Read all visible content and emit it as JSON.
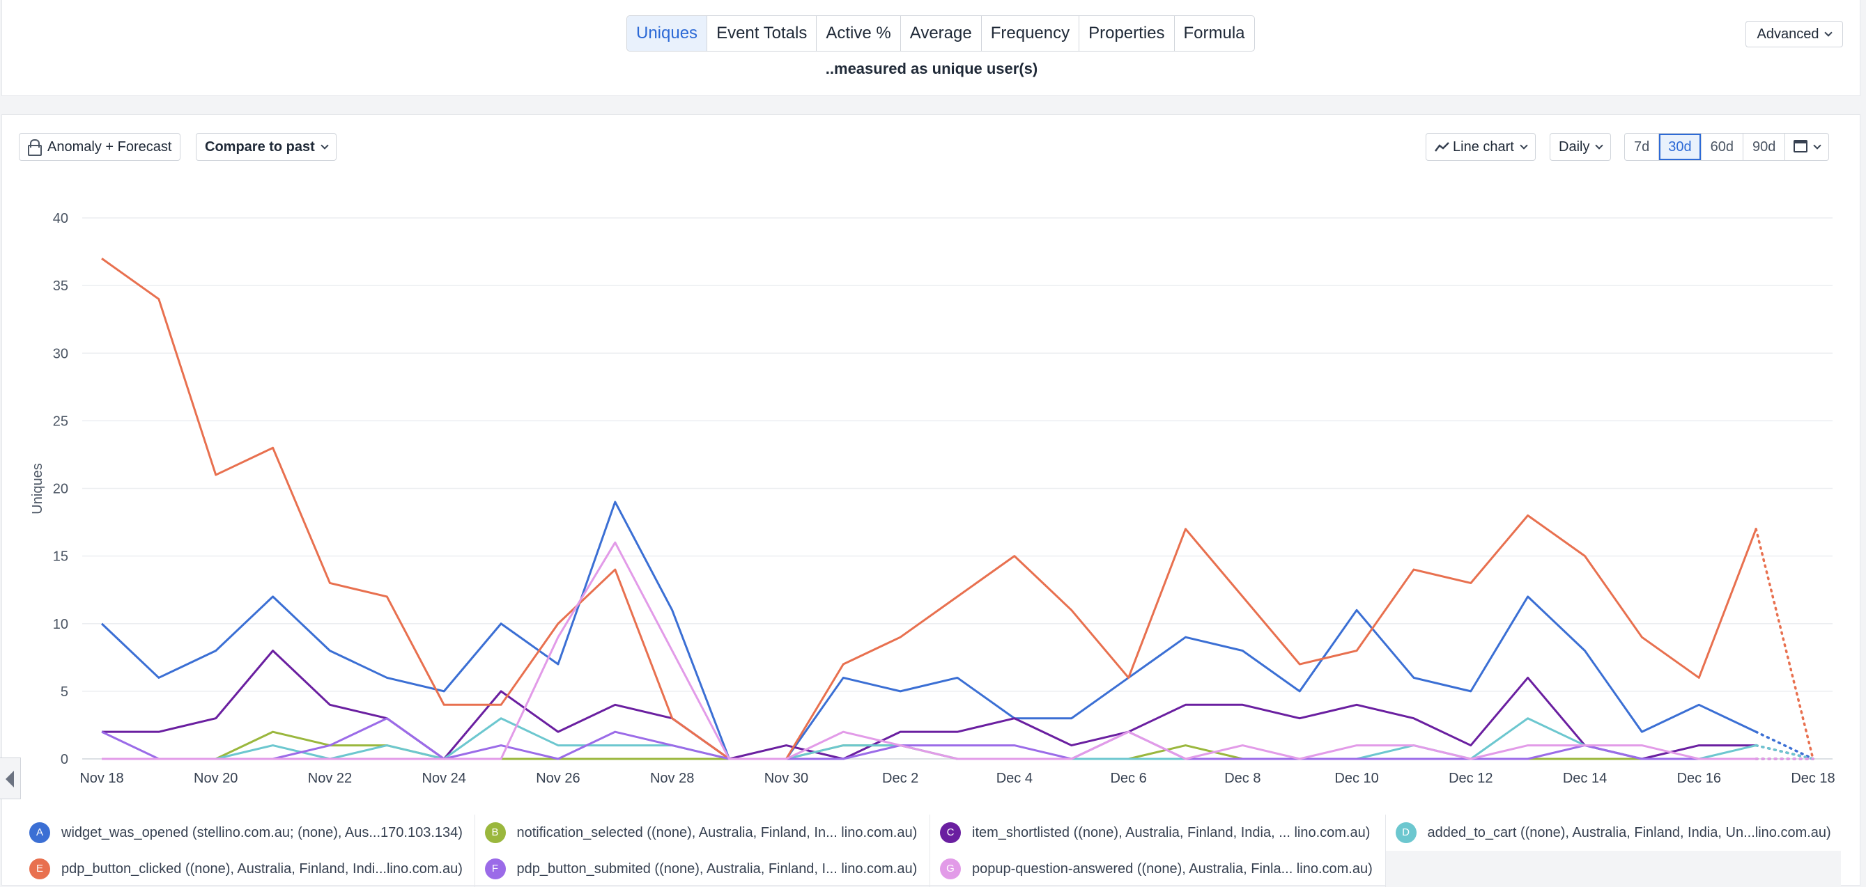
{
  "metric_tabs": [
    "Uniques",
    "Event Totals",
    "Active %",
    "Average",
    "Frequency",
    "Properties",
    "Formula"
  ],
  "active_metric": "Uniques",
  "measured_text": "..measured as unique user(s)",
  "advanced_label": "Advanced",
  "toolbar": {
    "anomaly_label": "Anomaly + Forecast",
    "compare_label": "Compare to past",
    "chart_type_label": "Line chart",
    "interval_label": "Daily",
    "ranges": [
      "7d",
      "30d",
      "60d",
      "90d"
    ],
    "active_range": "30d"
  },
  "legend": [
    {
      "letter": "A",
      "label": "widget_was_opened (stellino.com.au; (none), Aus...170.103.134)",
      "color": "#3b6fd4"
    },
    {
      "letter": "B",
      "label": "notification_selected ((none), Australia, Finland, In... lino.com.au)",
      "color": "#9ab73d"
    },
    {
      "letter": "C",
      "label": "item_shortlisted ((none), Australia, Finland, India, ... lino.com.au)",
      "color": "#6a1fa0"
    },
    {
      "letter": "D",
      "label": "added_to_cart ((none), Australia, Finland, India, Un...lino.com.au)",
      "color": "#6cc7cf"
    },
    {
      "letter": "E",
      "label": "pdp_button_clicked ((none), Australia, Finland, Indi...lino.com.au)",
      "color": "#e8704f"
    },
    {
      "letter": "F",
      "label": "pdp_button_submited ((none), Australia, Finland, I... lino.com.au)",
      "color": "#9b6be8"
    },
    {
      "letter": "G",
      "label": "popup-question-answered ((none), Australia, Finla... lino.com.au)",
      "color": "#e29be8"
    }
  ],
  "chart_data": {
    "type": "line",
    "ylabel": "Uniques",
    "ylim": [
      0,
      40
    ],
    "yticks": [
      0,
      5,
      10,
      15,
      20,
      25,
      30,
      35,
      40
    ],
    "x": [
      "Nov 18",
      "Nov 19",
      "Nov 20",
      "Nov 21",
      "Nov 22",
      "Nov 23",
      "Nov 24",
      "Nov 25",
      "Nov 26",
      "Nov 27",
      "Nov 28",
      "Nov 29",
      "Nov 30",
      "Dec 1",
      "Dec 2",
      "Dec 3",
      "Dec 4",
      "Dec 5",
      "Dec 6",
      "Dec 7",
      "Dec 8",
      "Dec 9",
      "Dec 10",
      "Dec 11",
      "Dec 12",
      "Dec 13",
      "Dec 14",
      "Dec 15",
      "Dec 16",
      "Dec 17",
      "Dec 18"
    ],
    "xtick_labels": [
      "Nov 18",
      "Nov 20",
      "Nov 22",
      "Nov 24",
      "Nov 26",
      "Nov 28",
      "Nov 30",
      "Dec 2",
      "Dec 4",
      "Dec 6",
      "Dec 8",
      "Dec 10",
      "Dec 12",
      "Dec 14",
      "Dec 16",
      "Dec 18"
    ],
    "last_point_projected": true,
    "series": [
      {
        "name": "widget_was_opened",
        "color": "#3b6fd4",
        "values": [
          10,
          6,
          8,
          12,
          8,
          6,
          5,
          10,
          7,
          19,
          11,
          0,
          0,
          6,
          5,
          6,
          3,
          3,
          6,
          9,
          8,
          5,
          11,
          6,
          5,
          12,
          8,
          2,
          4,
          2,
          0
        ]
      },
      {
        "name": "notification_selected",
        "color": "#9ab73d",
        "values": [
          0,
          0,
          0,
          2,
          1,
          1,
          0,
          0,
          0,
          0,
          0,
          0,
          0,
          1,
          1,
          0,
          0,
          0,
          0,
          1,
          0,
          0,
          0,
          0,
          0,
          0,
          0,
          0,
          0,
          0,
          0
        ]
      },
      {
        "name": "item_shortlisted",
        "color": "#6a1fa0",
        "values": [
          2,
          2,
          3,
          8,
          4,
          3,
          0,
          5,
          2,
          4,
          3,
          0,
          1,
          0,
          2,
          2,
          3,
          1,
          2,
          4,
          4,
          3,
          4,
          3,
          1,
          6,
          1,
          0,
          1,
          1,
          0
        ]
      },
      {
        "name": "added_to_cart",
        "color": "#6cc7cf",
        "values": [
          0,
          0,
          0,
          1,
          0,
          1,
          0,
          3,
          1,
          1,
          1,
          0,
          0,
          1,
          1,
          0,
          0,
          0,
          0,
          0,
          0,
          0,
          0,
          1,
          0,
          3,
          1,
          0,
          0,
          1,
          0
        ]
      },
      {
        "name": "pdp_button_clicked",
        "color": "#e8704f",
        "values": [
          37,
          34,
          21,
          23,
          13,
          12,
          4,
          4,
          10,
          14,
          3,
          0,
          0,
          7,
          9,
          12,
          15,
          11,
          6,
          17,
          12,
          7,
          8,
          14,
          13,
          18,
          15,
          9,
          6,
          17,
          0
        ]
      },
      {
        "name": "pdp_button_submited",
        "color": "#9b6be8",
        "values": [
          2,
          0,
          0,
          0,
          1,
          3,
          0,
          1,
          0,
          2,
          1,
          0,
          0,
          0,
          1,
          1,
          1,
          0,
          2,
          0,
          0,
          0,
          0,
          0,
          0,
          0,
          1,
          0,
          0,
          0,
          0
        ]
      },
      {
        "name": "popup-question-answered",
        "color": "#e29be8",
        "values": [
          0,
          0,
          0,
          0,
          0,
          0,
          0,
          0,
          9,
          16,
          8,
          0,
          0,
          2,
          1,
          0,
          0,
          0,
          2,
          0,
          1,
          0,
          1,
          1,
          0,
          1,
          1,
          1,
          0,
          0,
          0
        ]
      }
    ]
  }
}
